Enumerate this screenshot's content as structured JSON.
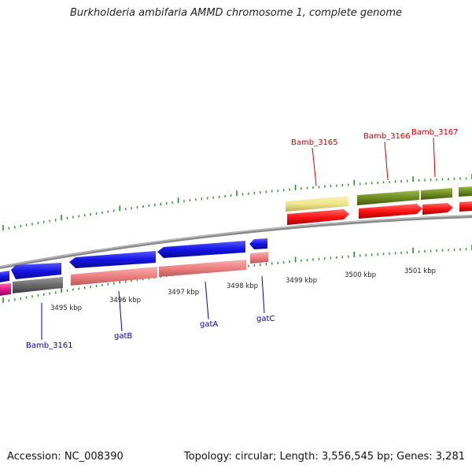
{
  "title": "Burkholderia ambifaria AMMD chromosome 1, complete genome",
  "footer": {
    "accession": "Accession: NC_008390",
    "summary": "Topology: circular; Length: 3,556,545 bp; Genes: 3,281"
  },
  "scale_labels": [
    "3495 kbp",
    "3496 kbp",
    "3497 kbp",
    "3498 kbp",
    "3499 kbp",
    "3500 kbp",
    "3501 kbp"
  ],
  "gene_labels": {
    "bamb_3161": "Bamb_3161",
    "gatB": "gatB",
    "gatA": "gatA",
    "gatC": "gatC",
    "bamb_3165": "Bamb_3165",
    "bamb_3166": "Bamb_3166",
    "bamb_3167": "Bamb_3167"
  },
  "colors": {
    "forward_strand": "#1414e6",
    "reverse_strand": "#ef8080",
    "reverse_alt": "#ff1414",
    "forward_alt": "#6e8c22",
    "pale_feature": "#efe68c",
    "grey_feature": "#6a6a6a",
    "magenta_feature": "#e6148c",
    "backbone": "#8a8a8a",
    "ticks": "#2a8a2a",
    "blue_label": "#0000aa",
    "red_label": "#cc0000"
  }
}
